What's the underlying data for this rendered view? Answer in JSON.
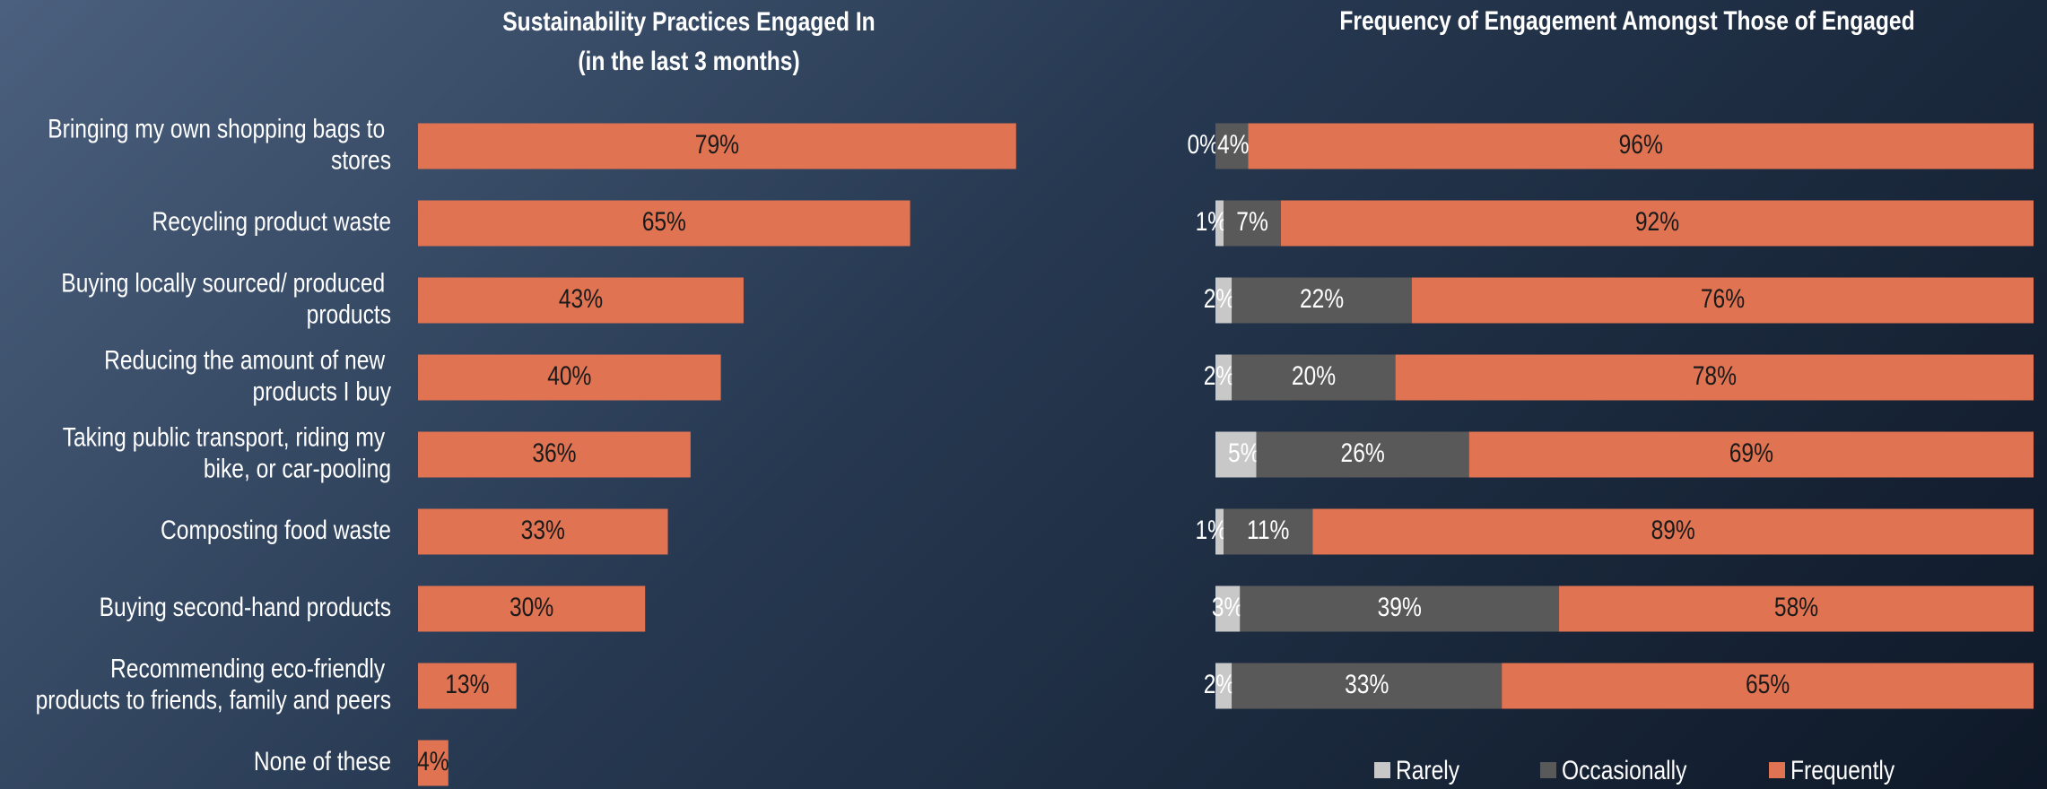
{
  "chart_data": [
    {
      "type": "bar",
      "orientation": "horizontal",
      "title": "Sustainability Practices Engaged In",
      "subtitle": "(in the last 3 months)",
      "categories": [
        "Bringing my own shopping bags to\nstores",
        "Recycling product waste",
        "Buying locally sourced/ produced\nproducts",
        "Reducing the amount of new\nproducts I buy",
        "Taking public transport, riding my\nbike, or car-pooling",
        "Composting food waste",
        "Buying second-hand products",
        "Recommending eco-friendly\nproducts to friends, family and peers",
        "None of these"
      ],
      "values": [
        79,
        65,
        43,
        40,
        36,
        33,
        30,
        13,
        4
      ],
      "value_labels": [
        "79%",
        "65%",
        "43%",
        "40%",
        "36%",
        "33%",
        "30%",
        "13%",
        "4%"
      ],
      "color": "#e07352"
    },
    {
      "type": "stacked_bar",
      "orientation": "horizontal",
      "title": "Frequency of Engagement Amongst Those of Engaged",
      "legend": "bottom",
      "series": [
        {
          "name": "Rarely",
          "color": "#c8c8c8",
          "values": [
            0,
            1,
            2,
            2,
            5,
            1,
            3,
            2
          ],
          "value_labels": [
            "0%",
            "1%",
            "2%",
            "2%",
            "5%",
            "1%",
            "3%",
            "2%"
          ]
        },
        {
          "name": "Occasionally",
          "color": "#595959",
          "values": [
            4,
            7,
            22,
            20,
            26,
            11,
            39,
            33
          ],
          "value_labels": [
            "4%",
            "7%",
            "22%",
            "20%",
            "26%",
            "11%",
            "39%",
            "33%"
          ]
        },
        {
          "name": "Frequently",
          "color": "#e07352",
          "values": [
            96,
            92,
            76,
            78,
            69,
            89,
            58,
            65
          ],
          "value_labels": [
            "96%",
            "92%",
            "76%",
            "78%",
            "69%",
            "89%",
            "58%",
            "65%"
          ]
        }
      ]
    }
  ]
}
